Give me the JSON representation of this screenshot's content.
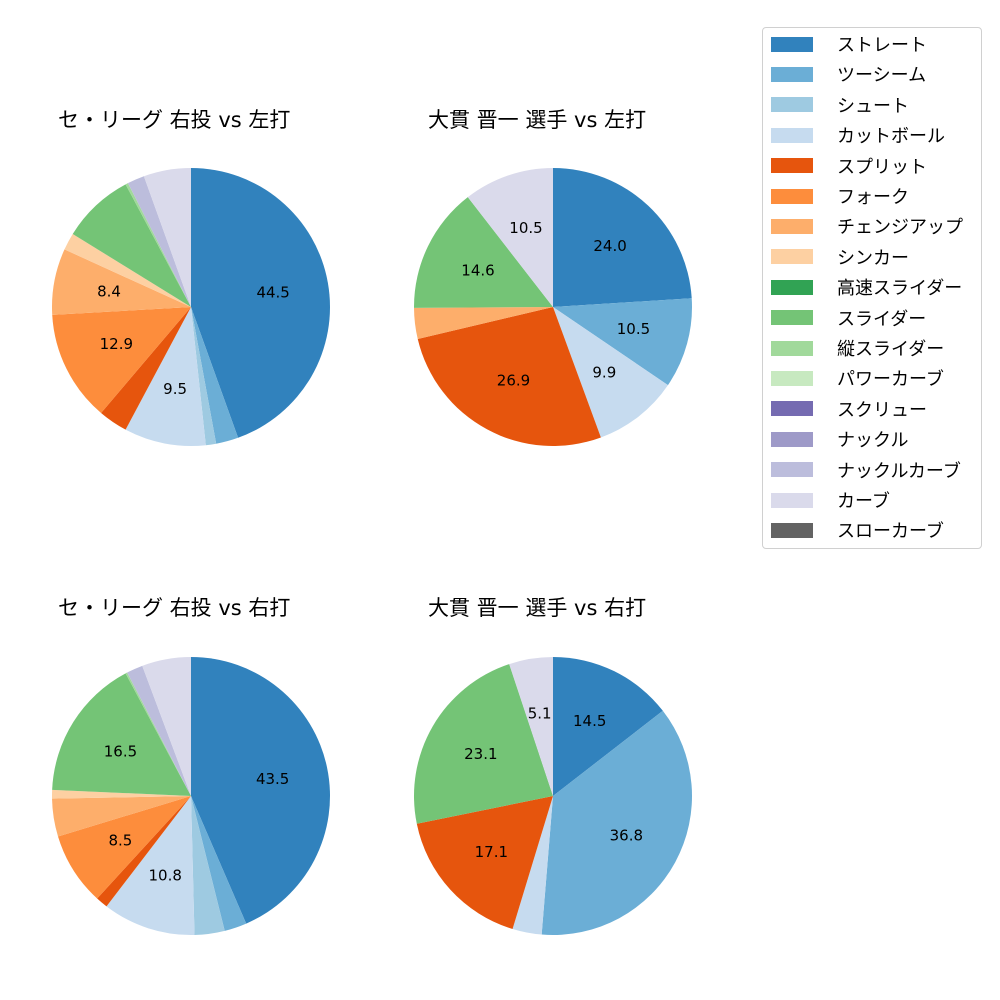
{
  "legend": {
    "items": [
      {
        "label": "ストレート",
        "color": "#3182bd"
      },
      {
        "label": "ツーシーム",
        "color": "#6baed6"
      },
      {
        "label": "シュート",
        "color": "#9ecae1"
      },
      {
        "label": "カットボール",
        "color": "#c6dbef"
      },
      {
        "label": "スプリット",
        "color": "#e6550d"
      },
      {
        "label": "フォーク",
        "color": "#fd8d3c"
      },
      {
        "label": "チェンジアップ",
        "color": "#fdae6b"
      },
      {
        "label": "シンカー",
        "color": "#fdd0a2"
      },
      {
        "label": "高速スライダー",
        "color": "#31a354"
      },
      {
        "label": "スライダー",
        "color": "#74c476"
      },
      {
        "label": "縦スライダー",
        "color": "#a1d99b"
      },
      {
        "label": "パワーカーブ",
        "color": "#c7e9c0"
      },
      {
        "label": "スクリュー",
        "color": "#756bb1"
      },
      {
        "label": "ナックル",
        "color": "#9e9ac8"
      },
      {
        "label": "ナックルカーブ",
        "color": "#bcbddc"
      },
      {
        "label": "カーブ",
        "color": "#dadaeb"
      },
      {
        "label": "スローカーブ",
        "color": "#636363"
      }
    ]
  },
  "chart_data": [
    {
      "type": "pie",
      "title": "セ・リーグ 右投 vs 左打",
      "position": "top-left",
      "label_threshold": 5,
      "slices": [
        {
          "name": "ストレート",
          "value": 44.5
        },
        {
          "name": "ツーシーム",
          "value": 2.6
        },
        {
          "name": "シュート",
          "value": 1.2
        },
        {
          "name": "カットボール",
          "value": 9.5
        },
        {
          "name": "スプリット",
          "value": 3.4
        },
        {
          "name": "フォーク",
          "value": 12.9
        },
        {
          "name": "チェンジアップ",
          "value": 7.7
        },
        {
          "name": "シンカー",
          "value": 2.0
        },
        {
          "name": "スライダー",
          "value": 8.4
        },
        {
          "name": "縦スライダー",
          "value": 0.3
        },
        {
          "name": "ナックルカーブ",
          "value": 2.0
        },
        {
          "name": "カーブ",
          "value": 5.5
        }
      ],
      "visible_labels": [
        "44.5",
        "9.5",
        "12.9",
        "8.4"
      ]
    },
    {
      "type": "pie",
      "title": "大貫 晋一 選手 vs 左打",
      "position": "top-right",
      "slices": [
        {
          "name": "ストレート",
          "value": 24.0
        },
        {
          "name": "ツーシーム",
          "value": 10.5
        },
        {
          "name": "カットボール",
          "value": 9.9
        },
        {
          "name": "スプリット",
          "value": 26.9
        },
        {
          "name": "チェンジアップ",
          "value": 3.6
        },
        {
          "name": "スライダー",
          "value": 14.6
        },
        {
          "name": "カーブ",
          "value": 10.5
        }
      ],
      "visible_labels": [
        "24.0",
        "10.5",
        "9.9",
        "26.9",
        "14.6",
        "10.5"
      ]
    },
    {
      "type": "pie",
      "title": "セ・リーグ 右投 vs 右打",
      "position": "bottom-left",
      "slices": [
        {
          "name": "ストレート",
          "value": 43.5
        },
        {
          "name": "ツーシーム",
          "value": 2.6
        },
        {
          "name": "シュート",
          "value": 3.5
        },
        {
          "name": "カットボール",
          "value": 10.8
        },
        {
          "name": "スプリット",
          "value": 1.4
        },
        {
          "name": "フォーク",
          "value": 8.5
        },
        {
          "name": "チェンジアップ",
          "value": 4.4
        },
        {
          "name": "シンカー",
          "value": 1.0
        },
        {
          "name": "スライダー",
          "value": 16.5
        },
        {
          "name": "縦スライダー",
          "value": 0.2
        },
        {
          "name": "ナックルカーブ",
          "value": 1.9
        },
        {
          "name": "カーブ",
          "value": 5.7
        }
      ],
      "visible_labels": [
        "43.5",
        "10.8",
        "8.5",
        "16.5"
      ]
    },
    {
      "type": "pie",
      "title": "大貫 晋一 選手 vs 右打",
      "position": "bottom-right",
      "slices": [
        {
          "name": "ストレート",
          "value": 14.5
        },
        {
          "name": "ツーシーム",
          "value": 36.8
        },
        {
          "name": "カットボール",
          "value": 3.4
        },
        {
          "name": "スプリット",
          "value": 17.1
        },
        {
          "name": "スライダー",
          "value": 23.1
        },
        {
          "name": "カーブ",
          "value": 5.1
        }
      ],
      "visible_labels": [
        "14.5",
        "36.8",
        "17.1",
        "23.1",
        "5.1"
      ]
    }
  ]
}
